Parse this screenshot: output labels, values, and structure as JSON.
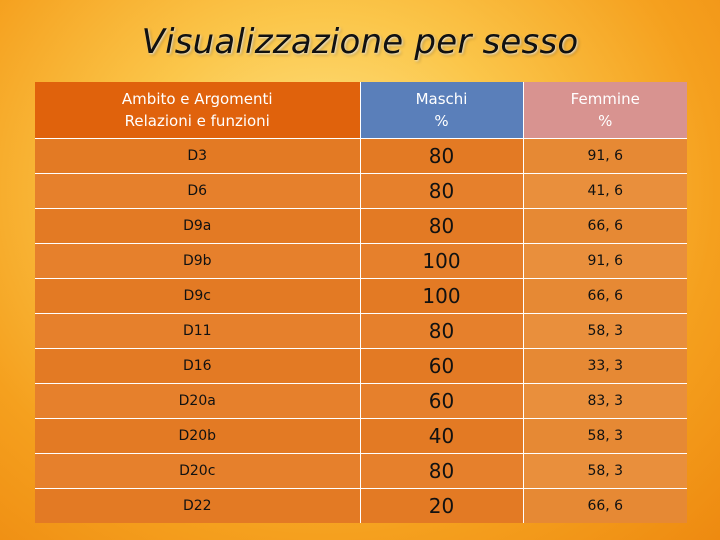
{
  "slide": {
    "title": "Visualizzazione per sesso"
  },
  "table": {
    "header": {
      "col1_line1": "Ambito e Argomenti",
      "col1_line2": "Relazioni e funzioni",
      "col2_line1": "Maschi",
      "col2_line2": "%",
      "col3_line1": "Femmine",
      "col3_line2": "%"
    },
    "rows": [
      {
        "ambito": "D3",
        "maschi": "80",
        "femmine": "91, 6"
      },
      {
        "ambito": "D6",
        "maschi": "80",
        "femmine": "41, 6"
      },
      {
        "ambito": "D9a",
        "maschi": "80",
        "femmine": "66, 6"
      },
      {
        "ambito": "D9b",
        "maschi": "100",
        "femmine": "91, 6"
      },
      {
        "ambito": "D9c",
        "maschi": "100",
        "femmine": "66, 6"
      },
      {
        "ambito": "D11",
        "maschi": "80",
        "femmine": "58, 3"
      },
      {
        "ambito": "D16",
        "maschi": "60",
        "femmine": "33, 3"
      },
      {
        "ambito": "D20a",
        "maschi": "60",
        "femmine": "83, 3"
      },
      {
        "ambito": "D20b",
        "maschi": "40",
        "femmine": "58, 3"
      },
      {
        "ambito": "D20c",
        "maschi": "80",
        "femmine": "58, 3"
      },
      {
        "ambito": "D22",
        "maschi": "20",
        "femmine": "66, 6"
      }
    ]
  },
  "colors": {
    "header_col1": "#e0620c",
    "header_maschi": "#5a7fba",
    "header_femmine": "#d89390",
    "row_fill": "#e37a24"
  }
}
